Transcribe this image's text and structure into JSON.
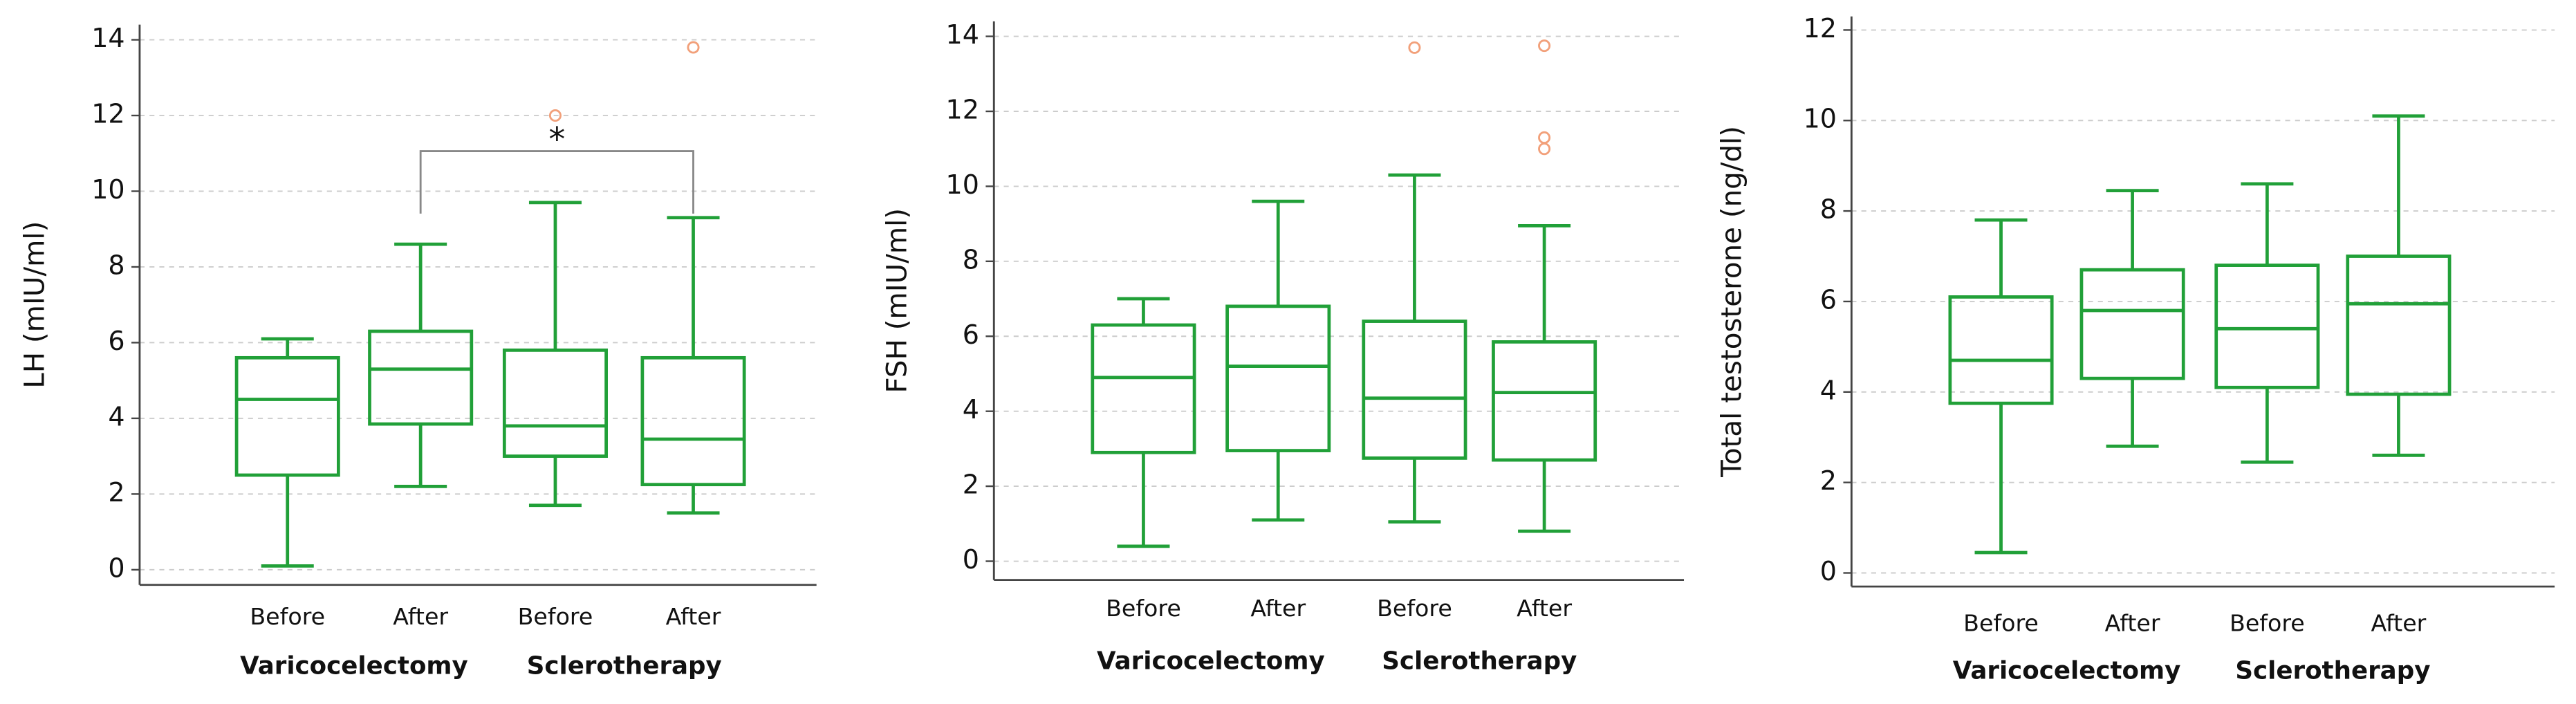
{
  "chart_data": [
    {
      "type": "box",
      "y_label": "LH (mIU/ml)",
      "categories": [
        "Before",
        "After",
        "Before",
        "After"
      ],
      "groups": [
        "Varicocelectomy",
        "Sclerotherapy"
      ],
      "color": "#21a038",
      "outlier_color": "#f2a07a",
      "boxes": [
        {
          "min": 0.1,
          "q1": 2.5,
          "median": 4.5,
          "q3": 5.6,
          "max": 6.1
        },
        {
          "min": 2.2,
          "q1": 3.85,
          "median": 5.3,
          "q3": 6.3,
          "max": 8.6
        },
        {
          "min": 1.7,
          "q1": 3.0,
          "median": 3.8,
          "q3": 5.8,
          "max": 9.7,
          "outliers": [
            12.0
          ]
        },
        {
          "min": 1.5,
          "q1": 2.25,
          "median": 3.45,
          "q3": 5.6,
          "max": 9.3,
          "outliers": [
            13.8
          ]
        }
      ],
      "annotation": "*",
      "ylim": [
        -0.4,
        14.4
      ],
      "yticks": [
        0,
        2,
        4,
        6,
        8,
        10,
        12,
        14
      ],
      "grid": true
    },
    {
      "type": "box",
      "y_label": "FSH (mIU/ml)",
      "categories": [
        "Before",
        "After",
        "Before",
        "After"
      ],
      "groups": [
        "Varicocelectomy",
        "Sclerotherapy"
      ],
      "color": "#21a038",
      "outlier_color": "#f2a07a",
      "boxes": [
        {
          "min": 0.4,
          "q1": 2.9,
          "median": 4.9,
          "q3": 6.3,
          "max": 7.0
        },
        {
          "min": 1.1,
          "q1": 2.95,
          "median": 5.2,
          "q3": 6.8,
          "max": 9.6
        },
        {
          "min": 1.05,
          "q1": 2.75,
          "median": 4.35,
          "q3": 6.4,
          "max": 10.3,
          "outliers": [
            13.7
          ]
        },
        {
          "min": 0.8,
          "q1": 2.7,
          "median": 4.5,
          "q3": 5.85,
          "max": 8.95,
          "outliers": [
            13.75,
            11.3,
            11.0
          ]
        }
      ],
      "ylim": [
        -0.5,
        14.4
      ],
      "yticks": [
        0,
        2,
        4,
        6,
        8,
        10,
        12,
        14
      ],
      "grid": true
    },
    {
      "type": "box",
      "y_label": "Total testosterone (ng/dl)",
      "categories": [
        "Before",
        "After",
        "Before",
        "After"
      ],
      "groups": [
        "Varicocelectomy",
        "Sclerotherapy"
      ],
      "color": "#21a038",
      "outlier_color": "#f2a07a",
      "boxes": [
        {
          "min": 0.45,
          "q1": 3.75,
          "median": 4.7,
          "q3": 6.1,
          "max": 7.8
        },
        {
          "min": 2.8,
          "q1": 4.3,
          "median": 5.8,
          "q3": 6.7,
          "max": 8.45
        },
        {
          "min": 2.45,
          "q1": 4.1,
          "median": 5.4,
          "q3": 6.8,
          "max": 8.6
        },
        {
          "min": 2.6,
          "q1": 3.95,
          "median": 5.95,
          "q3": 7.0,
          "max": 10.1
        }
      ],
      "ylim": [
        -0.3,
        12.3
      ],
      "yticks": [
        0,
        2,
        4,
        6,
        8,
        10,
        12
      ],
      "grid": true
    }
  ]
}
